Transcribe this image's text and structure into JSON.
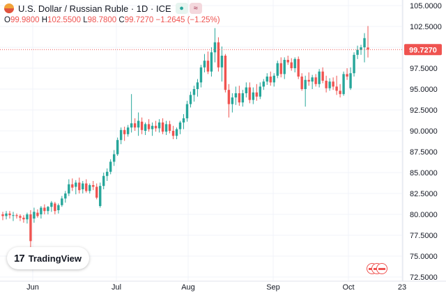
{
  "header": {
    "title": "U.S. Dollar / Russian Ruble · 1D · ICE",
    "pill_1": "●",
    "pill_2": "≈",
    "open_label": "O",
    "open_value": "99.9800",
    "high_label": "H",
    "high_value": "102.5500",
    "low_label": "L",
    "low_value": "98.7800",
    "close_label": "C",
    "close_value": "99.7270",
    "change_value": "−1.2645 (−1.25%)"
  },
  "brand": {
    "logo": "17",
    "name": "TradingView"
  },
  "colors": {
    "up": "#26a69a",
    "down": "#ef5350",
    "grid": "#f0f3fa",
    "price_tag": "#ef5350",
    "axis_text": "#131722"
  },
  "icons": {
    "event_markers": "us-flag-icon"
  },
  "chart_data": {
    "type": "candlestick",
    "title": "U.S. Dollar / Russian Ruble · 1D · ICE",
    "ylim": [
      72.5,
      105
    ],
    "y_ticks": [
      "105.0000",
      "102.5000",
      "100.0000",
      "97.5000",
      "95.0000",
      "92.5000",
      "90.0000",
      "87.5000",
      "85.0000",
      "82.5000",
      "80.0000",
      "77.5000",
      "75.0000",
      "72.5000"
    ],
    "x_ticks": [
      "Jun",
      "Jul",
      "Aug",
      "Sep",
      "Oct",
      "23"
    ],
    "last_price": 99.727,
    "last_price_label": "99.7270",
    "candles": [
      [
        80.0,
        80.3,
        79.3,
        79.8
      ],
      [
        79.8,
        80.4,
        79.4,
        80.1
      ],
      [
        80.1,
        80.4,
        79.5,
        79.9
      ],
      [
        79.9,
        80.3,
        79.2,
        79.9
      ],
      [
        79.9,
        80.1,
        79.5,
        79.8
      ],
      [
        79.8,
        80.0,
        79.2,
        79.6
      ],
      [
        79.6,
        79.9,
        79.0,
        79.4
      ],
      [
        79.4,
        80.2,
        78.9,
        80.0
      ],
      [
        80.0,
        80.5,
        76.0,
        76.8
      ],
      [
        79.5,
        80.8,
        79.0,
        80.3
      ],
      [
        80.2,
        80.6,
        79.6,
        79.8
      ],
      [
        80.0,
        81.0,
        79.5,
        80.8
      ],
      [
        80.8,
        81.2,
        80.0,
        80.4
      ],
      [
        80.4,
        81.0,
        80.0,
        80.9
      ],
      [
        80.9,
        81.6,
        80.3,
        81.4
      ],
      [
        81.3,
        81.5,
        80.0,
        80.4
      ],
      [
        80.5,
        81.3,
        80.1,
        81.1
      ],
      [
        81.1,
        82.2,
        80.9,
        81.9
      ],
      [
        81.9,
        82.8,
        81.4,
        82.5
      ],
      [
        82.5,
        84.2,
        82.2,
        83.6
      ],
      [
        83.6,
        84.3,
        82.8,
        83.2
      ],
      [
        83.3,
        84.1,
        82.4,
        83.8
      ],
      [
        83.8,
        84.4,
        82.5,
        82.9
      ],
      [
        83.0,
        84.0,
        82.5,
        83.7
      ],
      [
        83.7,
        84.2,
        82.6,
        82.8
      ],
      [
        82.8,
        83.7,
        82.5,
        83.5
      ],
      [
        83.5,
        84.0,
        82.9,
        83.3
      ],
      [
        83.3,
        83.7,
        81.8,
        82.0
      ],
      [
        81.0,
        83.8,
        80.8,
        83.4
      ],
      [
        83.4,
        85.0,
        83.0,
        84.6
      ],
      [
        84.6,
        85.5,
        84.0,
        85.1
      ],
      [
        85.1,
        86.6,
        84.8,
        86.3
      ],
      [
        86.3,
        87.7,
        85.8,
        87.2
      ],
      [
        87.2,
        89.2,
        87.0,
        88.9
      ],
      [
        88.9,
        90.4,
        88.4,
        90.1
      ],
      [
        90.1,
        90.5,
        88.8,
        89.6
      ],
      [
        89.6,
        90.7,
        89.3,
        90.4
      ],
      [
        90.4,
        94.4,
        89.8,
        90.9
      ],
      [
        90.9,
        91.5,
        90.0,
        90.4
      ],
      [
        90.4,
        92.2,
        89.4,
        91.2
      ],
      [
        91.1,
        91.6,
        89.6,
        90.1
      ],
      [
        90.0,
        91.0,
        89.5,
        90.8
      ],
      [
        90.8,
        91.4,
        89.9,
        90.2
      ],
      [
        90.2,
        91.0,
        89.4,
        90.6
      ],
      [
        90.6,
        91.2,
        89.9,
        90.3
      ],
      [
        90.3,
        91.4,
        89.8,
        91.0
      ],
      [
        91.0,
        91.5,
        89.6,
        89.9
      ],
      [
        89.9,
        91.2,
        89.5,
        90.8
      ],
      [
        90.8,
        91.2,
        89.7,
        90.0
      ],
      [
        90.0,
        90.6,
        89.0,
        89.4
      ],
      [
        89.4,
        90.4,
        89.0,
        90.2
      ],
      [
        90.2,
        91.2,
        89.6,
        91.0
      ],
      [
        91.0,
        92.0,
        90.2,
        91.5
      ],
      [
        91.5,
        93.6,
        91.1,
        93.2
      ],
      [
        93.2,
        94.7,
        92.8,
        94.3
      ],
      [
        94.3,
        95.4,
        93.5,
        95.0
      ],
      [
        95.0,
        96.2,
        94.1,
        95.8
      ],
      [
        95.8,
        97.9,
        95.2,
        97.6
      ],
      [
        97.6,
        99.2,
        97.0,
        98.4
      ],
      [
        98.4,
        99.5,
        96.8,
        97.1
      ],
      [
        97.1,
        100.0,
        96.5,
        99.4
      ],
      [
        99.4,
        102.3,
        98.2,
        100.6
      ],
      [
        100.6,
        101.2,
        97.1,
        97.6
      ],
      [
        97.6,
        100.1,
        95.9,
        99.0
      ],
      [
        99.0,
        99.2,
        94.6,
        94.9
      ],
      [
        94.9,
        95.6,
        91.6,
        93.2
      ],
      [
        93.2,
        94.5,
        92.2,
        94.0
      ],
      [
        94.0,
        95.3,
        93.1,
        94.5
      ],
      [
        94.5,
        95.4,
        93.0,
        93.4
      ],
      [
        93.4,
        94.9,
        92.9,
        94.5
      ],
      [
        94.5,
        95.8,
        94.0,
        95.2
      ],
      [
        95.2,
        95.8,
        93.3,
        93.7
      ],
      [
        93.7,
        95.2,
        93.2,
        94.6
      ],
      [
        94.6,
        95.6,
        93.6,
        94.1
      ],
      [
        94.1,
        95.8,
        93.8,
        95.3
      ],
      [
        95.3,
        96.2,
        94.9,
        95.9
      ],
      [
        95.9,
        96.9,
        95.5,
        96.5
      ],
      [
        96.5,
        97.1,
        95.4,
        95.8
      ],
      [
        95.8,
        96.9,
        95.3,
        96.6
      ],
      [
        96.6,
        98.4,
        96.3,
        98.1
      ],
      [
        98.1,
        98.8,
        96.4,
        96.8
      ],
      [
        96.8,
        98.8,
        96.2,
        98.5
      ],
      [
        98.5,
        99.0,
        97.9,
        98.2
      ],
      [
        98.2,
        98.7,
        97.2,
        97.5
      ],
      [
        97.5,
        98.8,
        97.0,
        98.6
      ],
      [
        98.6,
        98.9,
        96.2,
        96.5
      ],
      [
        96.5,
        96.9,
        94.8,
        95.0
      ],
      [
        95.0,
        96.6,
        92.9,
        96.1
      ],
      [
        96.1,
        97.0,
        95.4,
        95.9
      ],
      [
        95.9,
        96.7,
        95.0,
        96.4
      ],
      [
        96.4,
        96.8,
        95.3,
        95.6
      ],
      [
        95.6,
        97.4,
        95.2,
        97.1
      ],
      [
        97.1,
        97.6,
        95.7,
        96.0
      ],
      [
        96.0,
        96.6,
        94.6,
        95.1
      ],
      [
        95.1,
        96.3,
        94.8,
        95.9
      ],
      [
        95.9,
        96.4,
        94.9,
        95.3
      ],
      [
        95.3,
        96.6,
        94.3,
        94.8
      ],
      [
        94.8,
        95.6,
        94.0,
        94.4
      ],
      [
        94.4,
        97.1,
        94.2,
        96.8
      ],
      [
        96.8,
        97.5,
        96.1,
        96.5
      ],
      [
        95.1,
        97.6,
        94.9,
        96.9
      ],
      [
        96.9,
        99.4,
        96.5,
        99.1
      ],
      [
        99.1,
        100.2,
        98.6,
        99.7
      ],
      [
        99.7,
        100.3,
        99.1,
        100.0
      ],
      [
        100.0,
        101.7,
        98.2,
        101.1
      ],
      [
        99.98,
        102.55,
        98.78,
        99.727
      ]
    ]
  }
}
